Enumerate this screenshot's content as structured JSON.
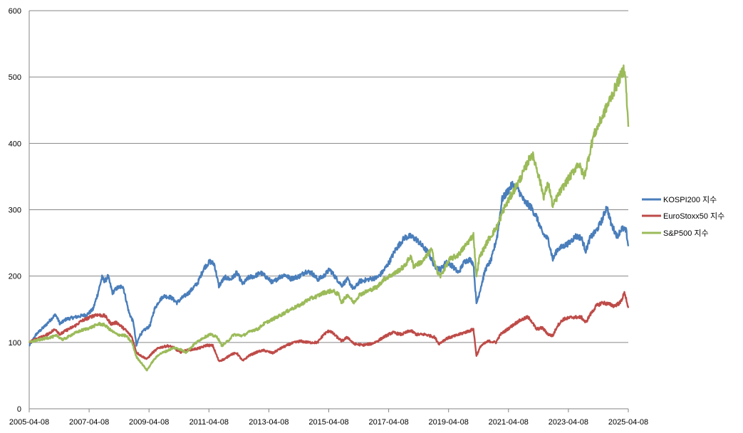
{
  "chart_data": {
    "type": "line",
    "title": "",
    "xlabel": "",
    "ylabel": "",
    "ylim": [
      0,
      600
    ],
    "yticks": [
      0,
      100,
      200,
      300,
      400,
      500,
      600
    ],
    "x_tick_labels": [
      "2005-04-08",
      "2007-04-08",
      "2009-04-08",
      "2011-04-08",
      "2013-04-08",
      "2015-04-08",
      "2017-04-08",
      "2019-04-08",
      "2021-04-08",
      "2023-04-08",
      "2025-04-08"
    ],
    "xlim": [
      2005.27,
      2025.27
    ],
    "grid": "horizontal",
    "legend_position": "right",
    "series": [
      {
        "name": "KOSPI200 지수",
        "color": "#4a7ebb",
        "points": [
          [
            2005.27,
            95
          ],
          [
            2005.5,
            112
          ],
          [
            2005.8,
            125
          ],
          [
            2006.0,
            135
          ],
          [
            2006.15,
            142
          ],
          [
            2006.3,
            128
          ],
          [
            2006.5,
            135
          ],
          [
            2006.8,
            138
          ],
          [
            2007.0,
            140
          ],
          [
            2007.2,
            142
          ],
          [
            2007.4,
            150
          ],
          [
            2007.55,
            172
          ],
          [
            2007.7,
            198
          ],
          [
            2007.8,
            192
          ],
          [
            2007.9,
            200
          ],
          [
            2008.05,
            175
          ],
          [
            2008.2,
            182
          ],
          [
            2008.4,
            185
          ],
          [
            2008.5,
            165
          ],
          [
            2008.6,
            145
          ],
          [
            2008.75,
            130
          ],
          [
            2008.85,
            95
          ],
          [
            2008.95,
            110
          ],
          [
            2009.1,
            118
          ],
          [
            2009.3,
            125
          ],
          [
            2009.45,
            150
          ],
          [
            2009.6,
            162
          ],
          [
            2009.75,
            170
          ],
          [
            2010.0,
            168
          ],
          [
            2010.2,
            160
          ],
          [
            2010.4,
            168
          ],
          [
            2010.6,
            175
          ],
          [
            2010.9,
            190
          ],
          [
            2011.1,
            212
          ],
          [
            2011.3,
            222
          ],
          [
            2011.45,
            218
          ],
          [
            2011.6,
            185
          ],
          [
            2011.8,
            198
          ],
          [
            2012.0,
            195
          ],
          [
            2012.2,
            205
          ],
          [
            2012.4,
            188
          ],
          [
            2012.6,
            198
          ],
          [
            2012.8,
            200
          ],
          [
            2013.0,
            205
          ],
          [
            2013.2,
            198
          ],
          [
            2013.4,
            190
          ],
          [
            2013.6,
            198
          ],
          [
            2013.8,
            202
          ],
          [
            2014.0,
            196
          ],
          [
            2014.3,
            200
          ],
          [
            2014.5,
            207
          ],
          [
            2014.7,
            205
          ],
          [
            2014.9,
            195
          ],
          [
            2015.1,
            200
          ],
          [
            2015.3,
            210
          ],
          [
            2015.5,
            198
          ],
          [
            2015.7,
            186
          ],
          [
            2015.9,
            195
          ],
          [
            2016.1,
            180
          ],
          [
            2016.3,
            192
          ],
          [
            2016.6,
            195
          ],
          [
            2016.9,
            198
          ],
          [
            2017.1,
            208
          ],
          [
            2017.3,
            222
          ],
          [
            2017.5,
            240
          ],
          [
            2017.8,
            258
          ],
          [
            2018.0,
            260
          ],
          [
            2018.2,
            255
          ],
          [
            2018.4,
            245
          ],
          [
            2018.6,
            235
          ],
          [
            2018.8,
            215
          ],
          [
            2019.0,
            210
          ],
          [
            2019.2,
            222
          ],
          [
            2019.4,
            215
          ],
          [
            2019.6,
            205
          ],
          [
            2019.8,
            222
          ],
          [
            2020.0,
            225
          ],
          [
            2020.1,
            218
          ],
          [
            2020.2,
            158
          ],
          [
            2020.3,
            175
          ],
          [
            2020.5,
            210
          ],
          [
            2020.7,
            225
          ],
          [
            2020.9,
            262
          ],
          [
            2021.05,
            315
          ],
          [
            2021.2,
            325
          ],
          [
            2021.4,
            338
          ],
          [
            2021.6,
            330
          ],
          [
            2021.8,
            312
          ],
          [
            2022.0,
            305
          ],
          [
            2022.2,
            290
          ],
          [
            2022.4,
            265
          ],
          [
            2022.6,
            255
          ],
          [
            2022.75,
            225
          ],
          [
            2022.9,
            240
          ],
          [
            2023.1,
            245
          ],
          [
            2023.3,
            250
          ],
          [
            2023.5,
            260
          ],
          [
            2023.7,
            258
          ],
          [
            2023.85,
            238
          ],
          [
            2024.0,
            258
          ],
          [
            2024.2,
            268
          ],
          [
            2024.4,
            285
          ],
          [
            2024.55,
            305
          ],
          [
            2024.7,
            278
          ],
          [
            2024.9,
            260
          ],
          [
            2025.05,
            272
          ],
          [
            2025.2,
            268
          ],
          [
            2025.27,
            245
          ]
        ]
      },
      {
        "name": "EuroStoxx50 지수",
        "color": "#be4b48",
        "points": [
          [
            2005.27,
            100
          ],
          [
            2005.5,
            105
          ],
          [
            2005.8,
            110
          ],
          [
            2006.0,
            116
          ],
          [
            2006.15,
            120
          ],
          [
            2006.3,
            112
          ],
          [
            2006.5,
            118
          ],
          [
            2006.8,
            125
          ],
          [
            2007.0,
            132
          ],
          [
            2007.2,
            136
          ],
          [
            2007.5,
            142
          ],
          [
            2007.8,
            140
          ],
          [
            2008.0,
            128
          ],
          [
            2008.2,
            130
          ],
          [
            2008.5,
            118
          ],
          [
            2008.7,
            108
          ],
          [
            2008.85,
            85
          ],
          [
            2009.0,
            80
          ],
          [
            2009.2,
            75
          ],
          [
            2009.4,
            85
          ],
          [
            2009.6,
            92
          ],
          [
            2009.9,
            95
          ],
          [
            2010.1,
            92
          ],
          [
            2010.3,
            85
          ],
          [
            2010.5,
            88
          ],
          [
            2010.8,
            90
          ],
          [
            2011.0,
            92
          ],
          [
            2011.2,
            96
          ],
          [
            2011.4,
            95
          ],
          [
            2011.6,
            72
          ],
          [
            2011.8,
            75
          ],
          [
            2012.0,
            82
          ],
          [
            2012.2,
            84
          ],
          [
            2012.4,
            72
          ],
          [
            2012.6,
            80
          ],
          [
            2012.9,
            86
          ],
          [
            2013.1,
            88
          ],
          [
            2013.4,
            84
          ],
          [
            2013.7,
            92
          ],
          [
            2014.0,
            98
          ],
          [
            2014.3,
            102
          ],
          [
            2014.6,
            100
          ],
          [
            2014.9,
            100
          ],
          [
            2015.1,
            112
          ],
          [
            2015.3,
            118
          ],
          [
            2015.5,
            110
          ],
          [
            2015.7,
            102
          ],
          [
            2015.9,
            108
          ],
          [
            2016.1,
            98
          ],
          [
            2016.4,
            96
          ],
          [
            2016.7,
            98
          ],
          [
            2016.9,
            102
          ],
          [
            2017.1,
            108
          ],
          [
            2017.4,
            115
          ],
          [
            2017.7,
            112
          ],
          [
            2018.0,
            118
          ],
          [
            2018.2,
            112
          ],
          [
            2018.5,
            112
          ],
          [
            2018.8,
            108
          ],
          [
            2018.95,
            98
          ],
          [
            2019.2,
            106
          ],
          [
            2019.5,
            110
          ],
          [
            2019.8,
            115
          ],
          [
            2020.0,
            118
          ],
          [
            2020.1,
            120
          ],
          [
            2020.2,
            80
          ],
          [
            2020.35,
            95
          ],
          [
            2020.6,
            102
          ],
          [
            2020.85,
            100
          ],
          [
            2021.0,
            112
          ],
          [
            2021.3,
            122
          ],
          [
            2021.6,
            132
          ],
          [
            2021.9,
            138
          ],
          [
            2022.0,
            135
          ],
          [
            2022.2,
            120
          ],
          [
            2022.4,
            122
          ],
          [
            2022.6,
            112
          ],
          [
            2022.75,
            110
          ],
          [
            2022.9,
            125
          ],
          [
            2023.1,
            135
          ],
          [
            2023.4,
            138
          ],
          [
            2023.7,
            138
          ],
          [
            2023.85,
            130
          ],
          [
            2024.0,
            142
          ],
          [
            2024.2,
            155
          ],
          [
            2024.4,
            160
          ],
          [
            2024.6,
            158
          ],
          [
            2024.8,
            155
          ],
          [
            2025.0,
            160
          ],
          [
            2025.15,
            175
          ],
          [
            2025.27,
            152
          ]
        ]
      },
      {
        "name": "S&P500 지수",
        "color": "#9bbb59",
        "points": [
          [
            2005.27,
            100
          ],
          [
            2005.5,
            103
          ],
          [
            2005.8,
            106
          ],
          [
            2006.0,
            108
          ],
          [
            2006.2,
            110
          ],
          [
            2006.4,
            104
          ],
          [
            2006.7,
            112
          ],
          [
            2007.0,
            118
          ],
          [
            2007.3,
            122
          ],
          [
            2007.6,
            128
          ],
          [
            2007.8,
            126
          ],
          [
            2008.0,
            118
          ],
          [
            2008.2,
            112
          ],
          [
            2008.5,
            110
          ],
          [
            2008.7,
            100
          ],
          [
            2008.85,
            78
          ],
          [
            2009.0,
            70
          ],
          [
            2009.2,
            58
          ],
          [
            2009.4,
            72
          ],
          [
            2009.6,
            82
          ],
          [
            2009.9,
            88
          ],
          [
            2010.1,
            92
          ],
          [
            2010.3,
            90
          ],
          [
            2010.5,
            85
          ],
          [
            2010.8,
            98
          ],
          [
            2011.0,
            105
          ],
          [
            2011.3,
            112
          ],
          [
            2011.55,
            108
          ],
          [
            2011.7,
            95
          ],
          [
            2011.9,
            102
          ],
          [
            2012.1,
            112
          ],
          [
            2012.4,
            110
          ],
          [
            2012.7,
            118
          ],
          [
            2012.9,
            120
          ],
          [
            2013.1,
            128
          ],
          [
            2013.4,
            135
          ],
          [
            2013.7,
            142
          ],
          [
            2014.0,
            150
          ],
          [
            2014.3,
            156
          ],
          [
            2014.6,
            165
          ],
          [
            2014.9,
            170
          ],
          [
            2015.1,
            175
          ],
          [
            2015.4,
            178
          ],
          [
            2015.6,
            172
          ],
          [
            2015.7,
            160
          ],
          [
            2015.9,
            172
          ],
          [
            2016.1,
            160
          ],
          [
            2016.3,
            172
          ],
          [
            2016.6,
            178
          ],
          [
            2016.9,
            184
          ],
          [
            2017.1,
            195
          ],
          [
            2017.5,
            205
          ],
          [
            2017.8,
            215
          ],
          [
            2018.0,
            230
          ],
          [
            2018.1,
            215
          ],
          [
            2018.4,
            222
          ],
          [
            2018.7,
            240
          ],
          [
            2018.9,
            205
          ],
          [
            2019.0,
            200
          ],
          [
            2019.3,
            225
          ],
          [
            2019.6,
            232
          ],
          [
            2019.9,
            250
          ],
          [
            2020.1,
            262
          ],
          [
            2020.2,
            200
          ],
          [
            2020.3,
            228
          ],
          [
            2020.6,
            255
          ],
          [
            2020.9,
            275
          ],
          [
            2021.1,
            300
          ],
          [
            2021.4,
            325
          ],
          [
            2021.7,
            350
          ],
          [
            2021.95,
            375
          ],
          [
            2022.05,
            385
          ],
          [
            2022.2,
            365
          ],
          [
            2022.45,
            320
          ],
          [
            2022.6,
            340
          ],
          [
            2022.75,
            305
          ],
          [
            2022.9,
            320
          ],
          [
            2023.1,
            335
          ],
          [
            2023.4,
            355
          ],
          [
            2023.6,
            370
          ],
          [
            2023.8,
            350
          ],
          [
            2023.95,
            380
          ],
          [
            2024.1,
            410
          ],
          [
            2024.3,
            430
          ],
          [
            2024.5,
            450
          ],
          [
            2024.7,
            470
          ],
          [
            2024.9,
            490
          ],
          [
            2025.05,
            505
          ],
          [
            2025.15,
            515
          ],
          [
            2025.2,
            480
          ],
          [
            2025.27,
            425
          ]
        ]
      }
    ]
  }
}
